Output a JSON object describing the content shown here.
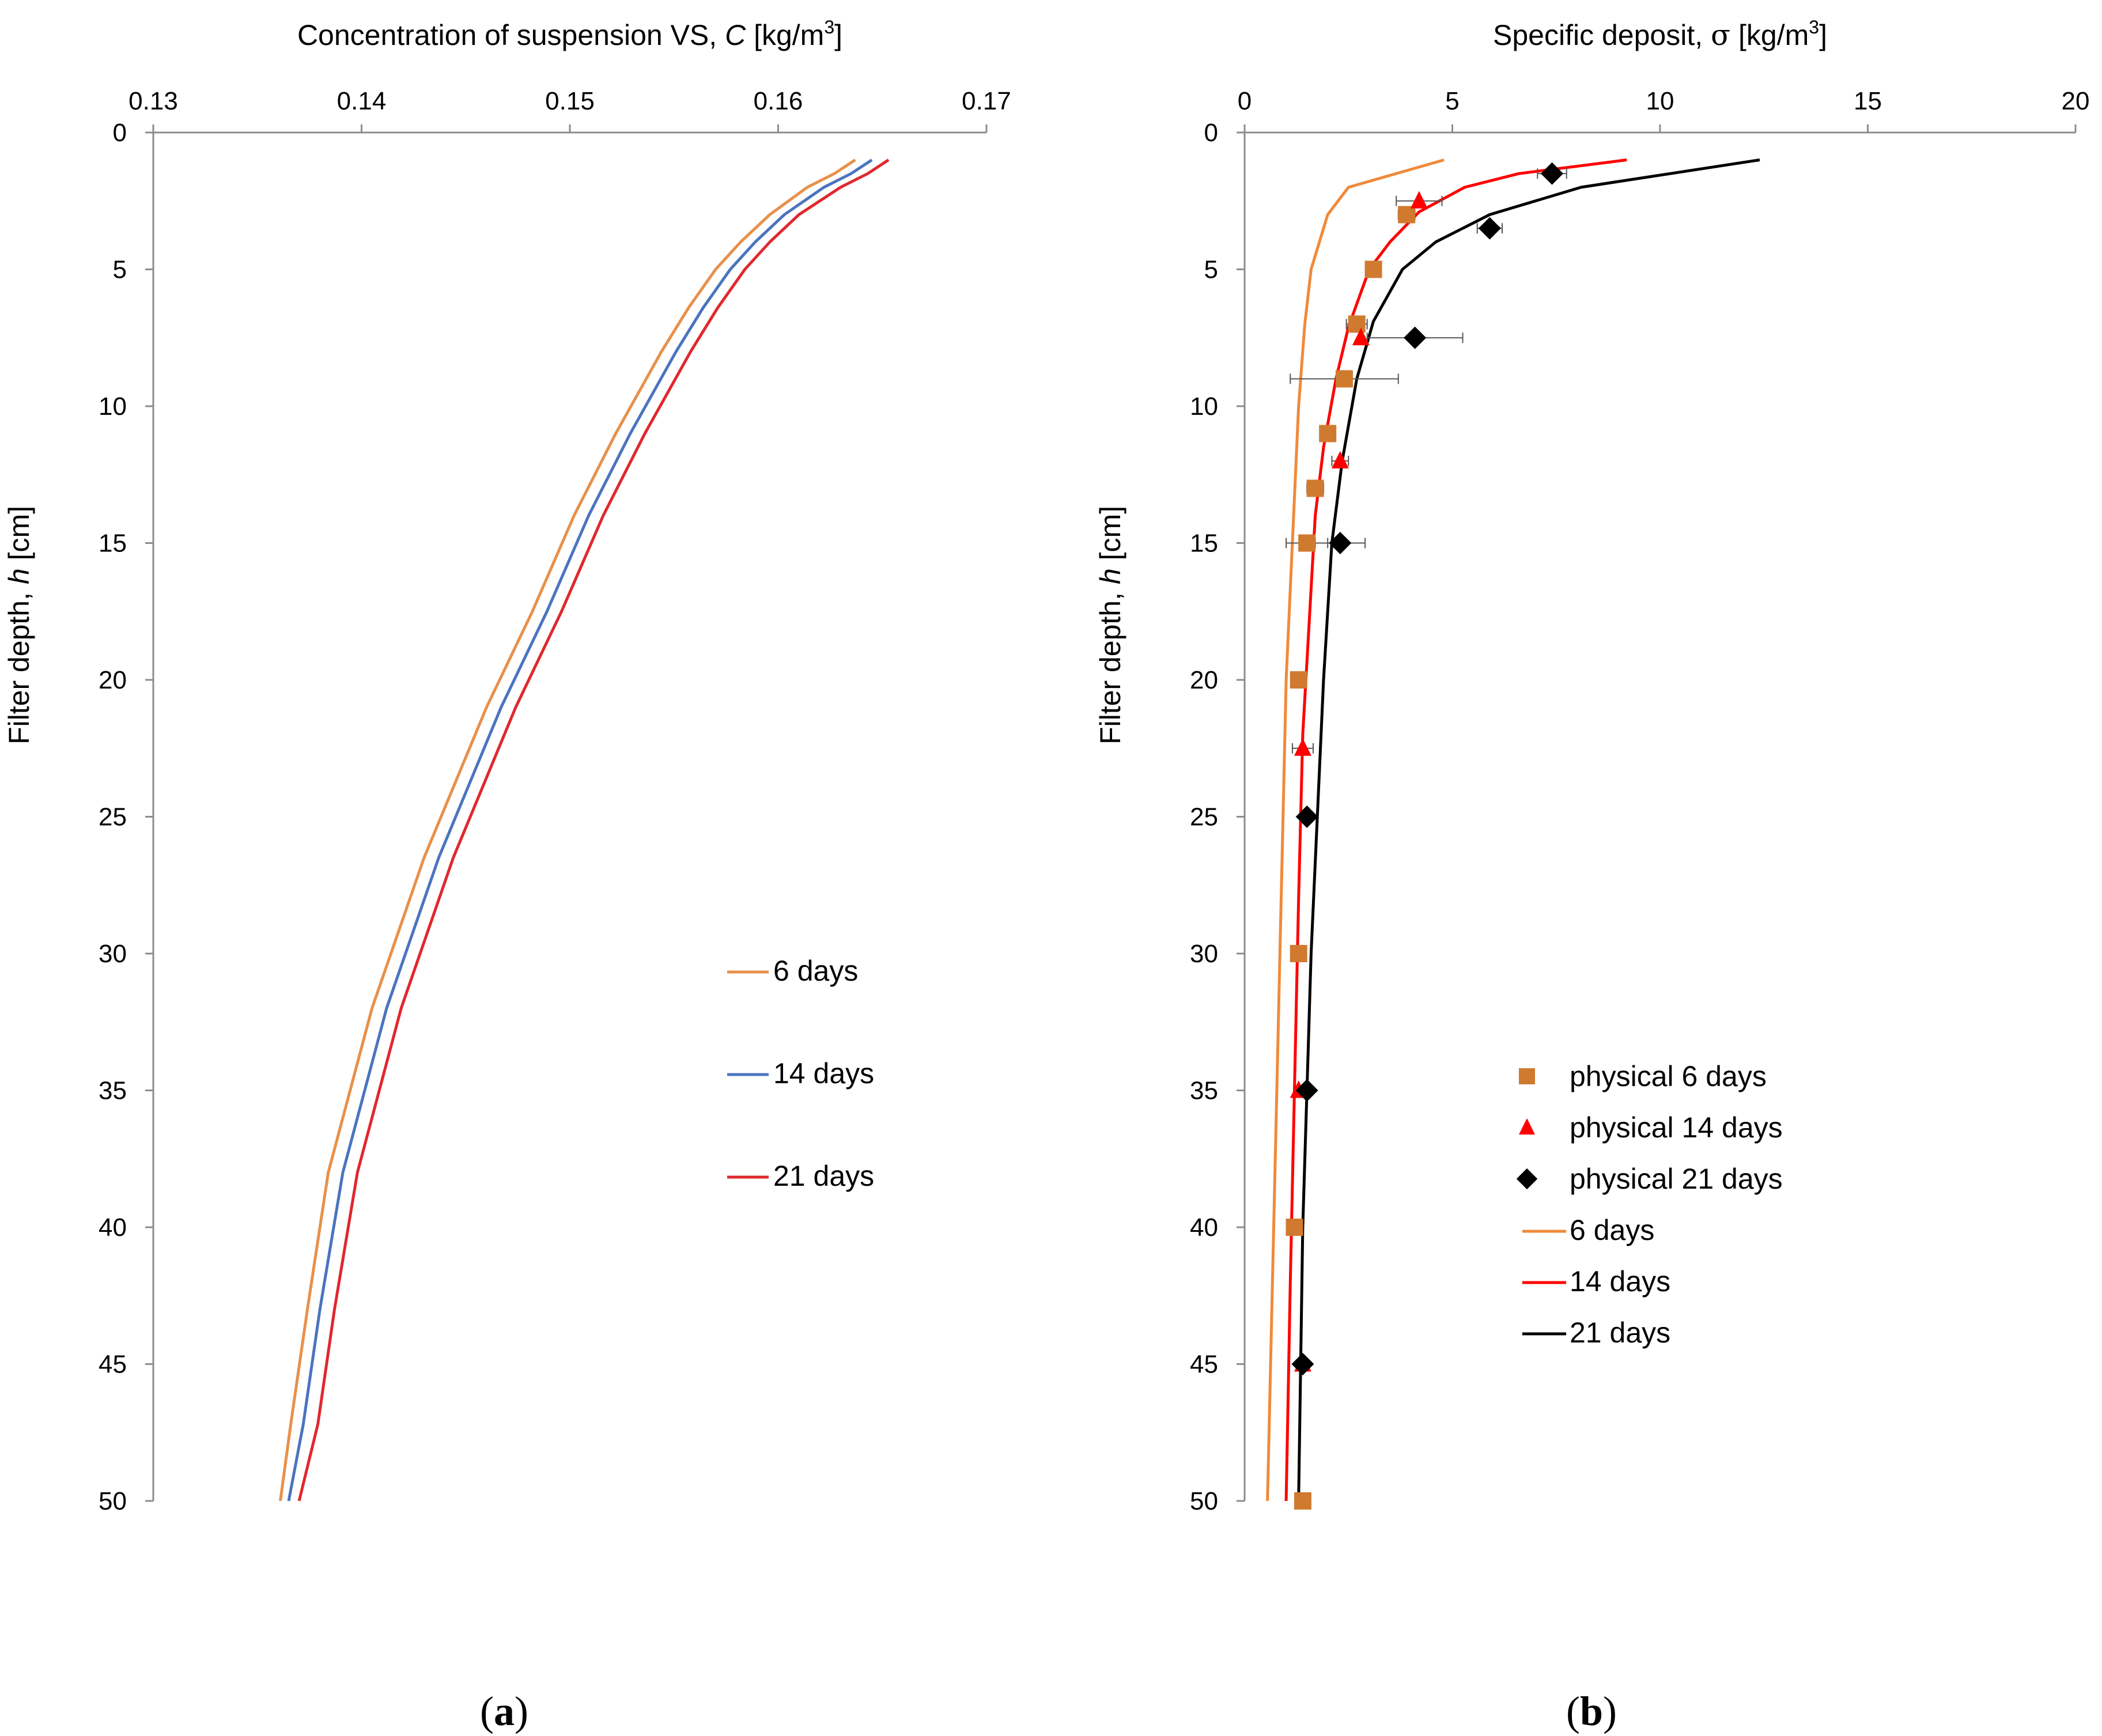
{
  "panel_labels": {
    "a": "a",
    "b": "b"
  },
  "chart_data": [
    {
      "id": "a",
      "type": "line",
      "title": "",
      "xlabel": {
        "prefix": "Concentration of suspension VS, ",
        "italic": "C",
        "unit_pre": " [kg/m",
        "sup": "3",
        "unit_post": "]"
      },
      "ylabel": {
        "prefix": "Filter depth, ",
        "italic": "h",
        "suffix": " [cm]"
      },
      "xlim": [
        0.13,
        0.17
      ],
      "ylim": [
        0,
        50
      ],
      "y_inverted": true,
      "x_axis_position": "top",
      "xticks": [
        "0.13",
        "0.14",
        "0.15",
        "0.16",
        "0.17"
      ],
      "xtick_values": [
        0.13,
        0.14,
        0.15,
        0.16,
        0.17
      ],
      "yticks": [
        "0",
        "5",
        "10",
        "15",
        "20",
        "25",
        "30",
        "35",
        "40",
        "45",
        "50"
      ],
      "ytick_values": [
        0,
        5,
        10,
        15,
        20,
        25,
        30,
        35,
        40,
        45,
        50
      ],
      "grid": false,
      "legend_position": "center-right",
      "series": [
        {
          "name": "6 days",
          "color": "#E8904A",
          "points": [
            [
              0.1637,
              1
            ],
            [
              0.1627,
              1.5
            ],
            [
              0.1614,
              2
            ],
            [
              0.1596,
              3
            ],
            [
              0.1582,
              4
            ],
            [
              0.157,
              5
            ],
            [
              0.1557,
              6.4
            ],
            [
              0.1544,
              8
            ],
            [
              0.1522,
              11
            ],
            [
              0.1502,
              14
            ],
            [
              0.1482,
              17.5
            ],
            [
              0.146,
              21
            ],
            [
              0.143,
              26.5
            ],
            [
              0.1405,
              32
            ],
            [
              0.1384,
              38
            ],
            [
              0.1374,
              43
            ],
            [
              0.1366,
              47.2
            ],
            [
              0.1361,
              50
            ]
          ]
        },
        {
          "name": "14 days",
          "color": "#4A74C0",
          "points": [
            [
              0.1645,
              1
            ],
            [
              0.1635,
              1.5
            ],
            [
              0.1622,
              2
            ],
            [
              0.1603,
              3
            ],
            [
              0.1589,
              4
            ],
            [
              0.1577,
              5
            ],
            [
              0.1564,
              6.4
            ],
            [
              0.1551,
              8
            ],
            [
              0.1529,
              11
            ],
            [
              0.1509,
              14
            ],
            [
              0.1489,
              17.5
            ],
            [
              0.1467,
              21
            ],
            [
              0.1437,
              26.5
            ],
            [
              0.1412,
              32
            ],
            [
              0.1391,
              38
            ],
            [
              0.138,
              43
            ],
            [
              0.1372,
              47.2
            ],
            [
              0.1365,
              50
            ]
          ]
        },
        {
          "name": "21 days",
          "color": "#E0282E",
          "points": [
            [
              0.1653,
              1
            ],
            [
              0.1643,
              1.5
            ],
            [
              0.163,
              2
            ],
            [
              0.161,
              3
            ],
            [
              0.1596,
              4
            ],
            [
              0.1584,
              5
            ],
            [
              0.1571,
              6.4
            ],
            [
              0.1558,
              8
            ],
            [
              0.1536,
              11
            ],
            [
              0.1516,
              14
            ],
            [
              0.1496,
              17.5
            ],
            [
              0.1474,
              21
            ],
            [
              0.1444,
              26.5
            ],
            [
              0.1419,
              32
            ],
            [
              0.1398,
              38
            ],
            [
              0.1387,
              43
            ],
            [
              0.1379,
              47.2
            ],
            [
              0.137,
              50
            ]
          ]
        }
      ]
    },
    {
      "id": "b",
      "type": "scatter",
      "title": "",
      "xlabel": {
        "prefix": "Specific deposit, ",
        "symbol": "σ",
        "unit_pre": " [kg/m",
        "sup": "3",
        "unit_post": "]"
      },
      "ylabel": {
        "prefix": "Filter depth, ",
        "italic": "h",
        "suffix": " [cm]"
      },
      "xlim": [
        0,
        20
      ],
      "ylim": [
        0,
        50
      ],
      "y_inverted": true,
      "x_axis_position": "top",
      "xticks": [
        "0",
        "5",
        "10",
        "15",
        "20"
      ],
      "xtick_values": [
        0,
        5,
        10,
        15,
        20
      ],
      "yticks": [
        "0",
        "5",
        "10",
        "15",
        "20",
        "25",
        "30",
        "35",
        "40",
        "45",
        "50"
      ],
      "ytick_values": [
        0,
        5,
        10,
        15,
        20,
        25,
        30,
        35,
        40,
        45,
        50
      ],
      "grid": false,
      "legend_position": "lower-right",
      "scatter_series": [
        {
          "name": "physical 6 days",
          "marker": "square",
          "color": "#D07A30",
          "points": [
            {
              "x": 3.9,
              "y": 3,
              "xerr": 0.2
            },
            {
              "x": 3.1,
              "y": 5
            },
            {
              "x": 2.7,
              "y": 7,
              "xerr": 0.25
            },
            {
              "x": 2.4,
              "y": 9,
              "xerr": 1.3
            },
            {
              "x": 2.0,
              "y": 11
            },
            {
              "x": 1.7,
              "y": 13,
              "xerr": 0.2
            },
            {
              "x": 1.5,
              "y": 15,
              "xerr": 0.5
            },
            {
              "x": 1.3,
              "y": 20
            },
            {
              "x": 1.3,
              "y": 30
            },
            {
              "x": 1.2,
              "y": 40
            },
            {
              "x": 1.4,
              "y": 50
            }
          ]
        },
        {
          "name": "physical 14 days",
          "marker": "triangle",
          "color": "#FF0000",
          "points": [
            {
              "x": 4.2,
              "y": 2.5,
              "xerr": 0.55
            },
            {
              "x": 2.8,
              "y": 7.5
            },
            {
              "x": 2.3,
              "y": 12,
              "xerr": 0.2
            },
            {
              "x": 1.4,
              "y": 22.5,
              "xerr": 0.25
            },
            {
              "x": 1.3,
              "y": 35
            },
            {
              "x": 1.4,
              "y": 45
            }
          ]
        },
        {
          "name": "physical 21 days",
          "marker": "diamond",
          "color": "#000000",
          "points": [
            {
              "x": 7.4,
              "y": 1.5,
              "xerr": 0.35
            },
            {
              "x": 5.9,
              "y": 3.5,
              "xerr": 0.3
            },
            {
              "x": 4.1,
              "y": 7.5,
              "xerr": 1.15
            },
            {
              "x": 2.3,
              "y": 15,
              "xerr": 0.6
            },
            {
              "x": 1.5,
              "y": 25
            },
            {
              "x": 1.5,
              "y": 35
            },
            {
              "x": 1.4,
              "y": 45
            }
          ]
        }
      ],
      "series": [
        {
          "name": "6 days",
          "color": "#F08A3A",
          "points": [
            [
              4.8,
              1
            ],
            [
              2.5,
              2
            ],
            [
              2.0,
              3
            ],
            [
              1.8,
              4
            ],
            [
              1.6,
              5
            ],
            [
              1.45,
              7
            ],
            [
              1.3,
              10
            ],
            [
              1.15,
              15
            ],
            [
              1.0,
              20
            ],
            [
              0.85,
              30
            ],
            [
              0.7,
              40
            ],
            [
              0.55,
              50
            ]
          ]
        },
        {
          "name": "14 days",
          "color": "#FF0000",
          "points": [
            [
              9.2,
              1
            ],
            [
              6.6,
              1.5
            ],
            [
              5.3,
              2
            ],
            [
              4.2,
              2.9
            ],
            [
              3.5,
              4
            ],
            [
              3.0,
              5
            ],
            [
              2.5,
              7.1
            ],
            [
              2.2,
              9
            ],
            [
              1.9,
              11.5
            ],
            [
              1.7,
              14
            ],
            [
              1.55,
              18
            ],
            [
              1.4,
              22
            ],
            [
              1.3,
              28
            ],
            [
              1.2,
              35
            ],
            [
              1.1,
              42
            ],
            [
              1.0,
              50
            ]
          ]
        },
        {
          "name": "21 days",
          "color": "#000000",
          "points": [
            [
              12.4,
              1
            ],
            [
              8.1,
              2
            ],
            [
              5.9,
              3
            ],
            [
              4.6,
              4
            ],
            [
              3.8,
              5
            ],
            [
              3.1,
              6.9
            ],
            [
              2.7,
              9
            ],
            [
              2.35,
              12
            ],
            [
              2.1,
              15
            ],
            [
              1.9,
              20
            ],
            [
              1.75,
              25
            ],
            [
              1.6,
              30
            ],
            [
              1.5,
              35
            ],
            [
              1.4,
              40
            ],
            [
              1.35,
              45
            ],
            [
              1.3,
              50
            ]
          ]
        }
      ]
    }
  ]
}
